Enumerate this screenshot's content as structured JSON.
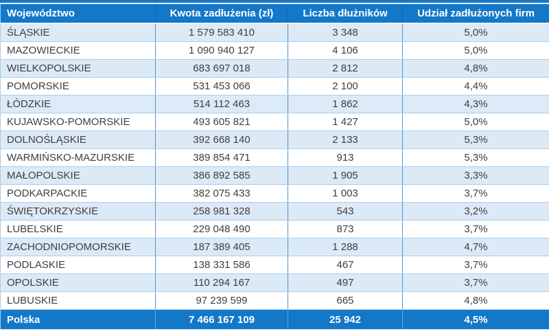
{
  "chart_data": {
    "type": "table",
    "title": "",
    "columns": [
      "Województwo",
      "Kwota zadłużenia (zł)",
      "Liczba dłużników",
      "Udział zadłużonych firm"
    ],
    "column_keys": [
      "wojewodztwo",
      "kwota-zadluzenia",
      "liczba-dluznikow",
      "udzial-zadluzonych-firm"
    ],
    "rows": [
      [
        "ŚLĄSKIE",
        "1 579 583 410",
        "3 348",
        "5,0%"
      ],
      [
        "MAZOWIECKIE",
        "1 090 940 127",
        "4 106",
        "5,0%"
      ],
      [
        "WIELKOPOLSKIE",
        "683 697 018",
        "2 812",
        "4,8%"
      ],
      [
        "POMORSKIE",
        "531 453 066",
        "2 100",
        "4,4%"
      ],
      [
        "ŁÓDZKIE",
        "514 112 463",
        "1 862",
        "4,3%"
      ],
      [
        "KUJAWSKO-POMORSKIE",
        "493 605 821",
        "1 427",
        "5,0%"
      ],
      [
        "DOLNOŚLĄSKIE",
        "392 668 140",
        "2 133",
        "5,3%"
      ],
      [
        "WARMIŃSKO-MAZURSKIE",
        "389 854 471",
        "913",
        "5,3%"
      ],
      [
        "MAŁOPOLSKIE",
        "386 892 585",
        "1 905",
        "3,3%"
      ],
      [
        "PODKARPACKIE",
        "382 075 433",
        "1 003",
        "3,7%"
      ],
      [
        "ŚWIĘTOKRZYSKIE",
        "258 981 328",
        "543",
        "3,2%"
      ],
      [
        "LUBELSKIE",
        "229 048 490",
        "873",
        "3,7%"
      ],
      [
        "ZACHODNIOPOMORSKIE",
        "187 389 405",
        "1 288",
        "4,7%"
      ],
      [
        "PODLASKIE",
        "138 331 586",
        "467",
        "3,7%"
      ],
      [
        "OPOLSKIE",
        "110 294 167",
        "497",
        "3,7%"
      ],
      [
        "LUBUSKIE",
        "97 239 599",
        "665",
        "4,8%"
      ]
    ],
    "total_row": [
      "Polska",
      "7 466 167 109",
      "25 942",
      "4,5%"
    ],
    "layout": {
      "banding": "rows",
      "header_row": true,
      "total_row": true,
      "first_column_align": "left",
      "data_columns_align": "center"
    },
    "colors": {
      "header_bg": "#1478C8",
      "header_text": "#FFFFFF",
      "banded_row_bg": "#DCEAF7",
      "plain_row_bg": "#FFFFFF",
      "body_text": "#3E3E3E",
      "total_row_bg": "#1478C8",
      "total_row_text": "#FFFFFF",
      "row_border": "#A9CDEB",
      "column_border": "#4E95D1",
      "top_border": "#1478C8"
    }
  }
}
